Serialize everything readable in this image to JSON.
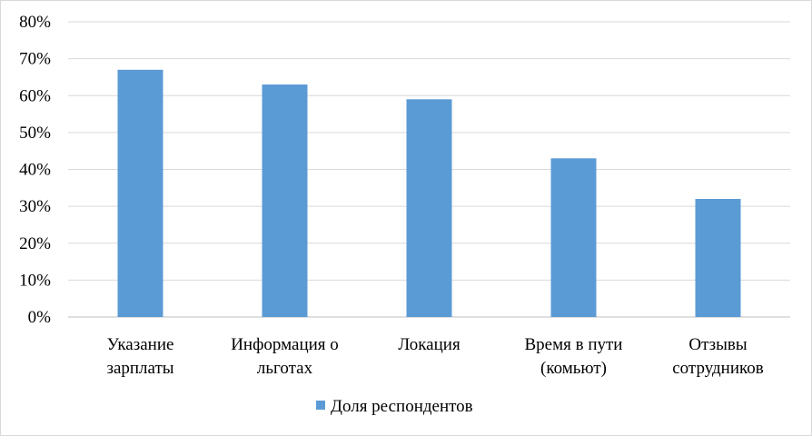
{
  "chart_data": {
    "type": "bar",
    "categories": [
      [
        "Указание",
        "зарплаты"
      ],
      [
        "Информация о",
        "льготах"
      ],
      [
        "Локация"
      ],
      [
        "Время в пути",
        "(комьют)"
      ],
      [
        "Отзывы",
        "сотрудников"
      ]
    ],
    "series": [
      {
        "name": "Доля респондентов",
        "values": [
          67,
          63,
          59,
          43,
          32
        ],
        "color": "#5b9bd5"
      }
    ],
    "y_ticks": [
      "0%",
      "10%",
      "20%",
      "30%",
      "40%",
      "50%",
      "60%",
      "70%",
      "80%"
    ],
    "ylim": [
      0,
      80
    ],
    "grid": true,
    "legend": "bottom",
    "gridline_color": "#d9d9d9",
    "axis_color": "#bfbfbf"
  }
}
